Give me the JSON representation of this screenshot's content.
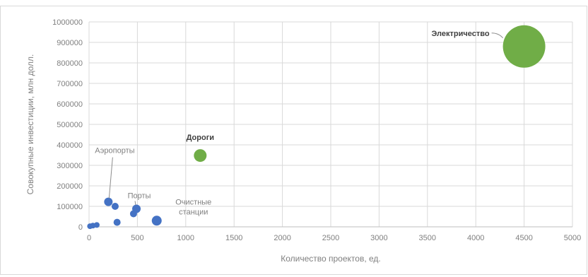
{
  "chart_data": {
    "type": "scatter",
    "xlabel": "Количество проектов, ед.",
    "ylabel": "Совокупные инвестиции, млн долл.",
    "xlim": [
      0,
      5000
    ],
    "ylim": [
      0,
      1000000
    ],
    "x_ticks": [
      0,
      500,
      1000,
      1500,
      2000,
      2500,
      3000,
      3500,
      4000,
      4500,
      5000
    ],
    "y_ticks": [
      0,
      100000,
      200000,
      300000,
      400000,
      500000,
      600000,
      700000,
      800000,
      900000,
      1000000
    ],
    "grid": true,
    "legend": "none",
    "colors": {
      "small": "#4472c4",
      "large": "#70ad47"
    },
    "points": [
      {
        "x": 4500,
        "y": 880000,
        "size": 30,
        "color": "large"
      },
      {
        "x": 1150,
        "y": 348000,
        "size": 9,
        "color": "large"
      },
      {
        "x": 200,
        "y": 122000,
        "size": 6,
        "color": "small"
      },
      {
        "x": 270,
        "y": 100000,
        "size": 5,
        "color": "small"
      },
      {
        "x": 490,
        "y": 88000,
        "size": 6,
        "color": "small"
      },
      {
        "x": 460,
        "y": 64000,
        "size": 5,
        "color": "small"
      },
      {
        "x": 700,
        "y": 30000,
        "size": 7,
        "color": "small"
      },
      {
        "x": 290,
        "y": 22000,
        "size": 5,
        "color": "small"
      },
      {
        "x": 10,
        "y": 3000,
        "size": 4,
        "color": "small"
      },
      {
        "x": 40,
        "y": 6000,
        "size": 4,
        "color": "small"
      },
      {
        "x": 80,
        "y": 9000,
        "size": 4,
        "color": "small"
      }
    ],
    "annotations": [
      {
        "text": "Электричество",
        "x": 4500,
        "y": 880000,
        "bold": true
      },
      {
        "text": "Дороги",
        "x": 1150,
        "y": 348000,
        "bold": true
      },
      {
        "text": "Аэропорты",
        "x": 200,
        "y": 122000,
        "bold": false
      },
      {
        "text": "Порты",
        "x": 490,
        "y": 88000,
        "bold": false
      },
      {
        "text": "Очистные",
        "x": 700,
        "y": 30000,
        "bold": false
      },
      {
        "text": "станции",
        "x": 700,
        "y": 30000,
        "bold": false
      }
    ]
  }
}
